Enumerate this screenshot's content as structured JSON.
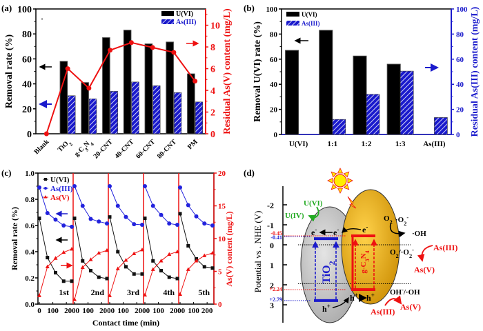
{
  "chart_data": [
    {
      "panel": "(a)",
      "type": "bar",
      "categories": [
        "Blank",
        "TiO2",
        "g-C3N4",
        "20-CNT",
        "40-CNT",
        "60-CNT",
        "80-CNT",
        "PM"
      ],
      "category_labels": [
        {
          "main": "Blank",
          "sub": ""
        },
        {
          "main": "TiO",
          "sub": "2"
        },
        {
          "main": "g-C",
          "sub": "3",
          "main2": "N",
          "sub2": "4"
        },
        {
          "main": "20-CNT",
          "sub": ""
        },
        {
          "main": "40-CNT",
          "sub": ""
        },
        {
          "main": "60-CNT",
          "sub": ""
        },
        {
          "main": "80-CNT",
          "sub": ""
        },
        {
          "main": "PM",
          "sub": ""
        }
      ],
      "series": [
        {
          "name": "U(VI)",
          "kind": "bar",
          "axis": "left",
          "color": "#000000",
          "values": [
            0,
            58,
            41,
            77,
            83,
            72,
            73.5,
            48
          ]
        },
        {
          "name": "As(III)",
          "kind": "bar-hatched",
          "axis": "left",
          "color": "#1a1acc",
          "values": [
            0,
            30.5,
            28,
            34,
            41.5,
            38.5,
            33,
            25.5
          ]
        },
        {
          "name": "Residual As(V)",
          "kind": "line",
          "axis": "right",
          "color": "#ee1111",
          "values": [
            0,
            6.0,
            4.2,
            7.7,
            8.4,
            7.95,
            7.5,
            4.85
          ]
        }
      ],
      "title": "",
      "xlabel": "",
      "ylabel": "Removal rate (%)",
      "ylabel_right": "Residual As(V) content (mg/L)",
      "ylim": [
        0,
        100
      ],
      "ylim_right": [
        0,
        11.5
      ],
      "yticks": [
        "0",
        "20",
        "40",
        "60",
        "80",
        "100"
      ],
      "yticks_right": [
        "0",
        "2",
        "4",
        "6",
        "8",
        "10"
      ],
      "legend": [
        "U(VI)",
        "As(III)"
      ],
      "legend_position": "top-right",
      "annotations": [
        "left-arrow (black) -> left axis",
        "left-arrow (blue) -> left axis",
        "right-arrow (red) -> right axis"
      ]
    },
    {
      "panel": "(b)",
      "type": "bar",
      "categories": [
        "U(VI)",
        "1:1",
        "1:2",
        "1:3",
        "As(III)"
      ],
      "series": [
        {
          "name": "U(VI)",
          "kind": "bar",
          "axis": "left",
          "color": "#000000",
          "values": [
            67,
            83,
            62.5,
            56,
            null
          ]
        },
        {
          "name": "As(III)",
          "kind": "bar-hatched",
          "axis": "right",
          "color": "#1a1acc",
          "values": [
            null,
            12,
            32,
            50.5,
            13.5
          ]
        }
      ],
      "title": "",
      "xlabel": "",
      "ylabel": "Removal U(VI) rate (%)",
      "ylabel_right": "Residual As(III) content (mg/L)",
      "ylim": [
        0,
        100
      ],
      "ylim_right": [
        0,
        100
      ],
      "yticks": [
        "0",
        "20",
        "40",
        "60",
        "80",
        "100"
      ],
      "yticks_right": [
        "0",
        "20",
        "40",
        "60",
        "80",
        "100"
      ],
      "legend": [
        "U(VI)",
        "As(III)"
      ],
      "legend_position": "top-left"
    },
    {
      "panel": "(c)",
      "type": "line",
      "cycles": [
        "1st",
        "2nd",
        "3rd",
        "4th",
        "5th"
      ],
      "x": [
        0,
        60,
        120,
        180,
        240
      ],
      "xticks_per_cycle": [
        "0",
        "100",
        "200"
      ],
      "xtick_labels_shown": [
        "0",
        "100",
        "2000",
        "100",
        "2000",
        "100",
        "2000",
        "100",
        "2000",
        "100",
        "200"
      ],
      "series": [
        {
          "name": "U(VI)",
          "marker": "square",
          "axis": "left",
          "color": "#111111",
          "values": [
            [
              0.655,
              0.355,
              0.24,
              0.175,
              0.175
            ],
            [
              0.655,
              0.33,
              0.255,
              0.205,
              0.195
            ],
            [
              0.665,
              0.4,
              0.285,
              0.23,
              0.23
            ],
            [
              0.655,
              0.33,
              0.255,
              0.205,
              0.195
            ],
            [
              0.69,
              0.445,
              0.345,
              0.285,
              0.275
            ]
          ]
        },
        {
          "name": "As(III)",
          "marker": "circle",
          "axis": "left",
          "color": "#2222dd",
          "values": [
            [
              0.89,
              0.695,
              0.645,
              0.6,
              0.59
            ],
            [
              0.9,
              0.75,
              0.65,
              0.63,
              0.615
            ],
            [
              0.9,
              0.75,
              0.665,
              0.61,
              0.605
            ],
            [
              0.9,
              0.75,
              0.68,
              0.615,
              0.605
            ],
            [
              0.89,
              0.755,
              0.67,
              0.615,
              0.6
            ]
          ]
        },
        {
          "name": "As(V)",
          "marker": "triangle",
          "axis": "right",
          "color": "#ee1111",
          "values": [
            [
              1.3,
              5.7,
              7.0,
              7.9,
              8.4
            ],
            [
              0.7,
              5.6,
              6.8,
              7.8,
              8.2
            ],
            [
              1.3,
              5.4,
              6.7,
              7.7,
              8.3
            ],
            [
              1.4,
              5.3,
              6.6,
              7.6,
              8.0
            ],
            [
              1.5,
              5.3,
              6.6,
              7.4,
              7.8
            ]
          ]
        }
      ],
      "title": "",
      "xlabel": "Contact time (min)",
      "ylabel": "Removal rate (%)",
      "ylabel_right": "As(V) content (mg/L)",
      "ylim": [
        0,
        1.0
      ],
      "ylim_right": [
        0,
        20
      ],
      "yticks": [
        "0.0",
        "0.2",
        "0.4",
        "0.6",
        "0.8",
        "1.0"
      ],
      "yticks_right": [
        "0",
        "5",
        "10",
        "15",
        "20"
      ],
      "legend": [
        "U(VI)",
        "As(III)",
        "As(V)"
      ],
      "legend_position": "top-left"
    },
    {
      "panel": "(d)",
      "type": "diagram",
      "ylabel": "Potential vs . NHE (V)",
      "yticks": [
        "-2",
        "-1",
        "0",
        "1",
        "2",
        "3"
      ],
      "ylim": [
        -2.7,
        3.6
      ],
      "levels": [
        {
          "label": "-0.45",
          "value": -0.45,
          "color": "#ee1111"
        },
        {
          "label": "-0.41",
          "value": -0.41,
          "color": "#1a1acc"
        },
        {
          "label": "+2.24",
          "value": 2.24,
          "color": "#ee1111"
        },
        {
          "label": "+2.79",
          "value": 2.79,
          "color": "#1a1acc"
        }
      ],
      "reference_levels": [
        {
          "label": "O2/·O2-",
          "value": 0.0
        },
        {
          "label": "OH-/·OH",
          "value": 1.95
        }
      ],
      "semiconductors": [
        {
          "name": "TiO2",
          "main": "TiO",
          "sub": "2",
          "cb": -0.41,
          "vb": 2.79,
          "color": "#1a1acc",
          "fill": "#c8c8c8"
        },
        {
          "name": "g-C3N4",
          "main": "g-C",
          "sub": "3",
          "main2": "N",
          "sub2": "4",
          "cb": -0.45,
          "vb": 2.24,
          "color": "#ee1111",
          "fill": "#e8a80c"
        }
      ],
      "labels": {
        "u6": "U(VI)",
        "u4": "U(IV)",
        "e": "e",
        "h": "h",
        "o2": "O",
        "o2rad": "·O",
        "oh": "·OH",
        "o2couple": "O2/·O2-",
        "ohcouple": "OH-/·OH",
        "as3_top": "As(III)",
        "as5_top": "As(V)",
        "as3_bottom": "As(III)",
        "as5_bottom": "As(V)"
      }
    }
  ],
  "panel_labels": [
    "(a)",
    "(b)",
    "(c)",
    "(d)"
  ],
  "colors": {
    "black": "#000000",
    "blue": "#1a1acc",
    "red": "#ee1111",
    "green": "#22aa22",
    "grey": "#c8c8c8",
    "gold": "#e8a80c",
    "sun": "#ffee00"
  }
}
